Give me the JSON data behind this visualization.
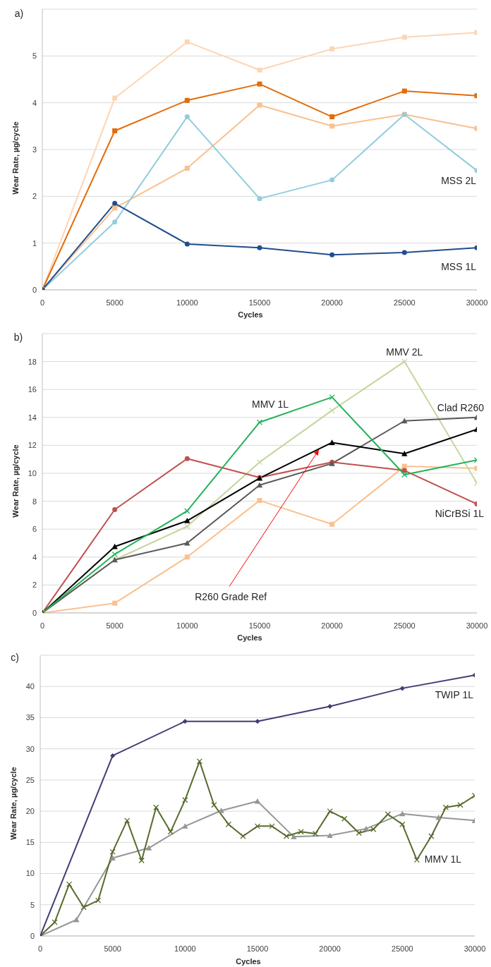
{
  "chart_data": [
    {
      "type": "line",
      "title": "a)",
      "xlabel": "Cycles",
      "ylabel": "Wear Rate, µg/cycle",
      "x": [
        0,
        5000,
        10000,
        15000,
        20000,
        25000,
        30000
      ],
      "xlim": [
        0,
        30000
      ],
      "xticks": [
        0,
        5000,
        10000,
        15000,
        20000,
        25000,
        30000
      ],
      "ylim": [
        0,
        6
      ],
      "yticks": [
        0,
        1,
        2,
        3,
        4,
        5
      ],
      "grid": "y",
      "series": [
        {
          "color": "#fcd5b5",
          "marker": "square",
          "values": [
            0,
            4.1,
            5.3,
            4.7,
            5.15,
            5.4,
            5.5
          ]
        },
        {
          "color": "#fac08f",
          "marker": "square",
          "values": [
            0,
            1.75,
            2.6,
            3.95,
            3.5,
            3.75,
            3.45
          ]
        },
        {
          "name": "MSS 2L",
          "color": "#92cddc",
          "marker": "circle",
          "values": [
            0,
            1.45,
            3.7,
            1.95,
            2.35,
            3.75,
            2.55
          ]
        },
        {
          "color": "#e36c09",
          "marker": "square",
          "values": [
            0,
            3.4,
            4.05,
            4.4,
            3.7,
            4.25,
            4.15
          ]
        },
        {
          "name": "MSS 1L",
          "color": "#1f4e8c",
          "marker": "circle",
          "values": [
            0,
            1.85,
            0.98,
            0.9,
            0.75,
            0.8,
            0.9
          ]
        }
      ]
    },
    {
      "type": "line",
      "title": "b)",
      "xlabel": "Cycles",
      "ylabel": "Wear Rate, µg/cycle",
      "x": [
        0,
        5000,
        10000,
        15000,
        20000,
        25000,
        30000
      ],
      "xlim": [
        0,
        30000
      ],
      "xticks": [
        0,
        5000,
        10000,
        15000,
        20000,
        25000,
        30000
      ],
      "ylim": [
        0,
        20
      ],
      "yticks": [
        0,
        2,
        4,
        6,
        8,
        10,
        12,
        14,
        16,
        18
      ],
      "grid": "y",
      "annotations": [
        {
          "text": "R260 Grade Ref",
          "x": 19100,
          "y": 11.7
        }
      ],
      "series": [
        {
          "color": "#fac08f",
          "marker": "square",
          "values": [
            0,
            0.7,
            4,
            8.05,
            6.35,
            10.5,
            10.35
          ]
        },
        {
          "name": "MMV 2L",
          "color": "#c3d69b",
          "marker": "cross",
          "values": [
            0,
            3.8,
            6.2,
            10.8,
            14.5,
            18,
            9.3
          ]
        },
        {
          "name": "NiCrBSi 1L",
          "color": "#c0504d",
          "marker": "circle",
          "values": [
            0,
            7.4,
            11.05,
            9.7,
            10.8,
            10.2,
            7.8
          ]
        },
        {
          "name": "Clad R260",
          "color": "#595959",
          "marker": "triangle",
          "values": [
            0,
            3.8,
            5,
            9.15,
            10.7,
            13.75,
            14
          ]
        },
        {
          "color": "#000000",
          "marker": "triangle",
          "values": [
            0,
            4.75,
            6.6,
            9.65,
            12.2,
            11.4,
            13.15
          ]
        },
        {
          "name": "MMV 1L",
          "color": "#22b35a",
          "marker": "cross",
          "values": [
            0,
            4.2,
            7.3,
            13.65,
            15.45,
            9.9,
            10.95
          ]
        }
      ]
    },
    {
      "type": "line",
      "title": "c)",
      "xlabel": "Cycles",
      "ylabel": "Wear Rate, µg/cycle",
      "xlim": [
        0,
        30000
      ],
      "xticks": [
        0,
        5000,
        10000,
        15000,
        20000,
        25000,
        30000
      ],
      "ylim": [
        0,
        45
      ],
      "yticks": [
        0,
        5,
        10,
        15,
        20,
        25,
        30,
        35,
        40
      ],
      "grid": "y",
      "series": [
        {
          "color": "#969696",
          "marker": "triangle",
          "x": [
            0,
            2500,
            5000,
            7500,
            10000,
            12500,
            15000,
            17500,
            20000,
            22500,
            25000,
            27500,
            30000
          ],
          "values": [
            0,
            2.6,
            12.5,
            14.1,
            17.6,
            20.1,
            21.6,
            15.9,
            16.1,
            17.2,
            19.6,
            19,
            18.5
          ]
        },
        {
          "name": "MMV 1L",
          "color": "#566b2c",
          "marker": "cross",
          "x": [
            0,
            1000,
            2000,
            3000,
            4000,
            5000,
            6000,
            7000,
            8000,
            9000,
            10000,
            11000,
            12000,
            13000,
            14000,
            15000,
            16000,
            17000,
            18000,
            19000,
            20000,
            21000,
            22000,
            23000,
            24000,
            25000,
            26000,
            27000,
            28000,
            29000,
            30000
          ],
          "values": [
            0,
            2.2,
            8.3,
            4.6,
            5.7,
            13.5,
            18.5,
            12.1,
            20.6,
            16.7,
            21.8,
            28,
            21,
            17.9,
            16,
            17.6,
            17.6,
            16,
            16.7,
            16.4,
            20,
            18.8,
            16.5,
            17.1,
            19.5,
            17.9,
            12.2,
            16,
            20.6,
            21,
            22.5
          ]
        },
        {
          "name": "TWIP 1L",
          "color": "#403e76",
          "marker": "diamond",
          "x": [
            0,
            5000,
            10000,
            15000,
            20000,
            25000,
            30000
          ],
          "values": [
            0,
            28.9,
            34.4,
            34.4,
            36.8,
            39.7,
            41.8
          ]
        }
      ]
    }
  ]
}
